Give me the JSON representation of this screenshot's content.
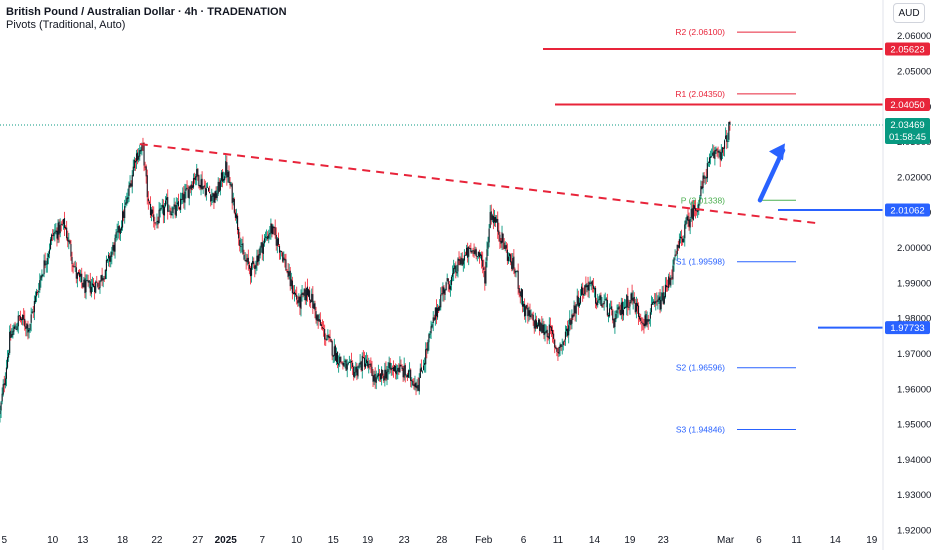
{
  "header": {
    "title": "British Pound / Australian Dollar · 4h · TRADENATION",
    "indicator": "Pivots (Traditional, Auto)",
    "currency": "AUD"
  },
  "colors": {
    "up": "#089981",
    "down": "#f23645",
    "candle_body": "#131722",
    "resistance": "#e8243a",
    "support": "#2962ff",
    "pivot_p": "#4caf50",
    "pivot_r": "#e8243a",
    "pivot_s": "#2962ff",
    "trendline": "#e8243a",
    "arrow": "#2962ff",
    "current_price": "#089981"
  },
  "chart_data": {
    "type": "candlestick",
    "y_range": [
      1.92,
      2.065
    ],
    "y_ticks": [
      "2.06000",
      "2.05000",
      "2.04000",
      "2.03000",
      "2.02000",
      "2.01000",
      "2.00000",
      "1.99000",
      "1.98000",
      "1.97000",
      "1.96000",
      "1.95000",
      "1.94000",
      "1.93000",
      "1.92000"
    ],
    "x_ticks": [
      {
        "label": "5",
        "idx": 4
      },
      {
        "label": "10",
        "idx": 49
      },
      {
        "label": "13",
        "idx": 77
      },
      {
        "label": "18",
        "idx": 114
      },
      {
        "label": "22",
        "idx": 146
      },
      {
        "label": "27",
        "idx": 184
      },
      {
        "label": "2025",
        "idx": 210,
        "bold": true
      },
      {
        "label": "7",
        "idx": 244
      },
      {
        "label": "10",
        "idx": 276
      },
      {
        "label": "15",
        "idx": 310
      },
      {
        "label": "19",
        "idx": 342
      },
      {
        "label": "23",
        "idx": 376
      },
      {
        "label": "28",
        "idx": 411
      },
      {
        "label": "Feb",
        "idx": 450
      },
      {
        "label": "6",
        "idx": 487
      },
      {
        "label": "11",
        "idx": 519
      },
      {
        "label": "14",
        "idx": 553
      },
      {
        "label": "19",
        "idx": 586
      },
      {
        "label": "23",
        "idx": 617
      },
      {
        "label": "Mar",
        "idx": 675
      },
      {
        "label": "6",
        "idx": 706
      },
      {
        "label": "11",
        "idx": 741
      },
      {
        "label": "14",
        "idx": 777
      },
      {
        "label": "19",
        "idx": 811
      }
    ],
    "anchors": [
      [
        0,
        1.953
      ],
      [
        9,
        1.974
      ],
      [
        18,
        1.98
      ],
      [
        27,
        1.9775
      ],
      [
        38,
        1.992
      ],
      [
        49,
        2.0035
      ],
      [
        60,
        2.0065
      ],
      [
        71,
        1.992
      ],
      [
        80,
        1.9885
      ],
      [
        92,
        1.99
      ],
      [
        101,
        1.996
      ],
      [
        110,
        2.004
      ],
      [
        118,
        2.013
      ],
      [
        126,
        2.026
      ],
      [
        133,
        2.028
      ],
      [
        138,
        2.012
      ],
      [
        145,
        2.007
      ],
      [
        155,
        2.012
      ],
      [
        163,
        2.01
      ],
      [
        173,
        2.015
      ],
      [
        182,
        2.021
      ],
      [
        190,
        2.017
      ],
      [
        200,
        2.014
      ],
      [
        210,
        2.0225
      ],
      [
        218,
        2.012
      ],
      [
        226,
        1.997
      ],
      [
        234,
        1.9935
      ],
      [
        243,
        2.0
      ],
      [
        252,
        2.0055
      ],
      [
        262,
        1.999
      ],
      [
        270,
        1.99
      ],
      [
        278,
        1.984
      ],
      [
        287,
        1.988
      ],
      [
        296,
        1.979
      ],
      [
        306,
        1.973
      ],
      [
        314,
        1.969
      ],
      [
        322,
        1.966
      ],
      [
        330,
        1.965
      ],
      [
        339,
        1.968
      ],
      [
        350,
        1.962
      ],
      [
        360,
        1.965
      ],
      [
        370,
        1.966
      ],
      [
        380,
        1.9635
      ],
      [
        389,
        1.9615
      ],
      [
        396,
        1.97
      ],
      [
        404,
        1.98
      ],
      [
        412,
        1.988
      ],
      [
        420,
        1.991
      ],
      [
        428,
        1.996
      ],
      [
        436,
        1.9985
      ],
      [
        444,
        1.9995
      ],
      [
        451,
        1.992
      ],
      [
        456,
        2.01
      ],
      [
        460,
        2.008
      ],
      [
        466,
        2.003
      ],
      [
        472,
        1.998
      ],
      [
        480,
        1.993
      ],
      [
        488,
        1.982
      ],
      [
        496,
        1.979
      ],
      [
        504,
        1.977
      ],
      [
        512,
        1.976
      ],
      [
        518,
        1.971
      ],
      [
        524,
        1.973
      ],
      [
        532,
        1.981
      ],
      [
        540,
        1.987
      ],
      [
        548,
        1.99
      ],
      [
        555,
        1.985
      ],
      [
        563,
        1.984
      ],
      [
        571,
        1.979
      ],
      [
        579,
        1.983
      ],
      [
        587,
        1.986
      ],
      [
        595,
        1.981
      ],
      [
        601,
        1.979
      ],
      [
        608,
        1.983
      ],
      [
        616,
        1.985
      ],
      [
        624,
        1.992
      ],
      [
        631,
        2.0
      ],
      [
        638,
        2.006
      ],
      [
        644,
        2.01
      ],
      [
        650,
        2.013
      ],
      [
        656,
        2.021
      ],
      [
        662,
        2.025
      ],
      [
        667,
        2.028
      ],
      [
        672,
        2.0265
      ],
      [
        675,
        2.03
      ],
      [
        679,
        2.0347
      ]
    ],
    "levels": {
      "resistance_1": "2.05623",
      "resistance_2": "2.04050",
      "support_1": "2.01062",
      "support_2": "1.97733",
      "current_price": "2.03469",
      "countdown": "01:58:45"
    },
    "pivots": [
      {
        "label": "R2 (2.06100)",
        "value": 2.061,
        "kind": "r"
      },
      {
        "label": "R1 (2.04350)",
        "value": 2.0435,
        "kind": "r"
      },
      {
        "label": "P (2.01338)",
        "value": 2.01338,
        "kind": "p"
      },
      {
        "label": "S1 (1.99598)",
        "value": 1.99598,
        "kind": "s"
      },
      {
        "label": "S2 (1.96596)",
        "value": 1.96596,
        "kind": "s"
      },
      {
        "label": "S3 (1.94846)",
        "value": 1.94846,
        "kind": "s"
      }
    ],
    "trendline": {
      "from": [
        130,
        2.0293
      ],
      "to": [
        760,
        2.0069
      ]
    }
  }
}
